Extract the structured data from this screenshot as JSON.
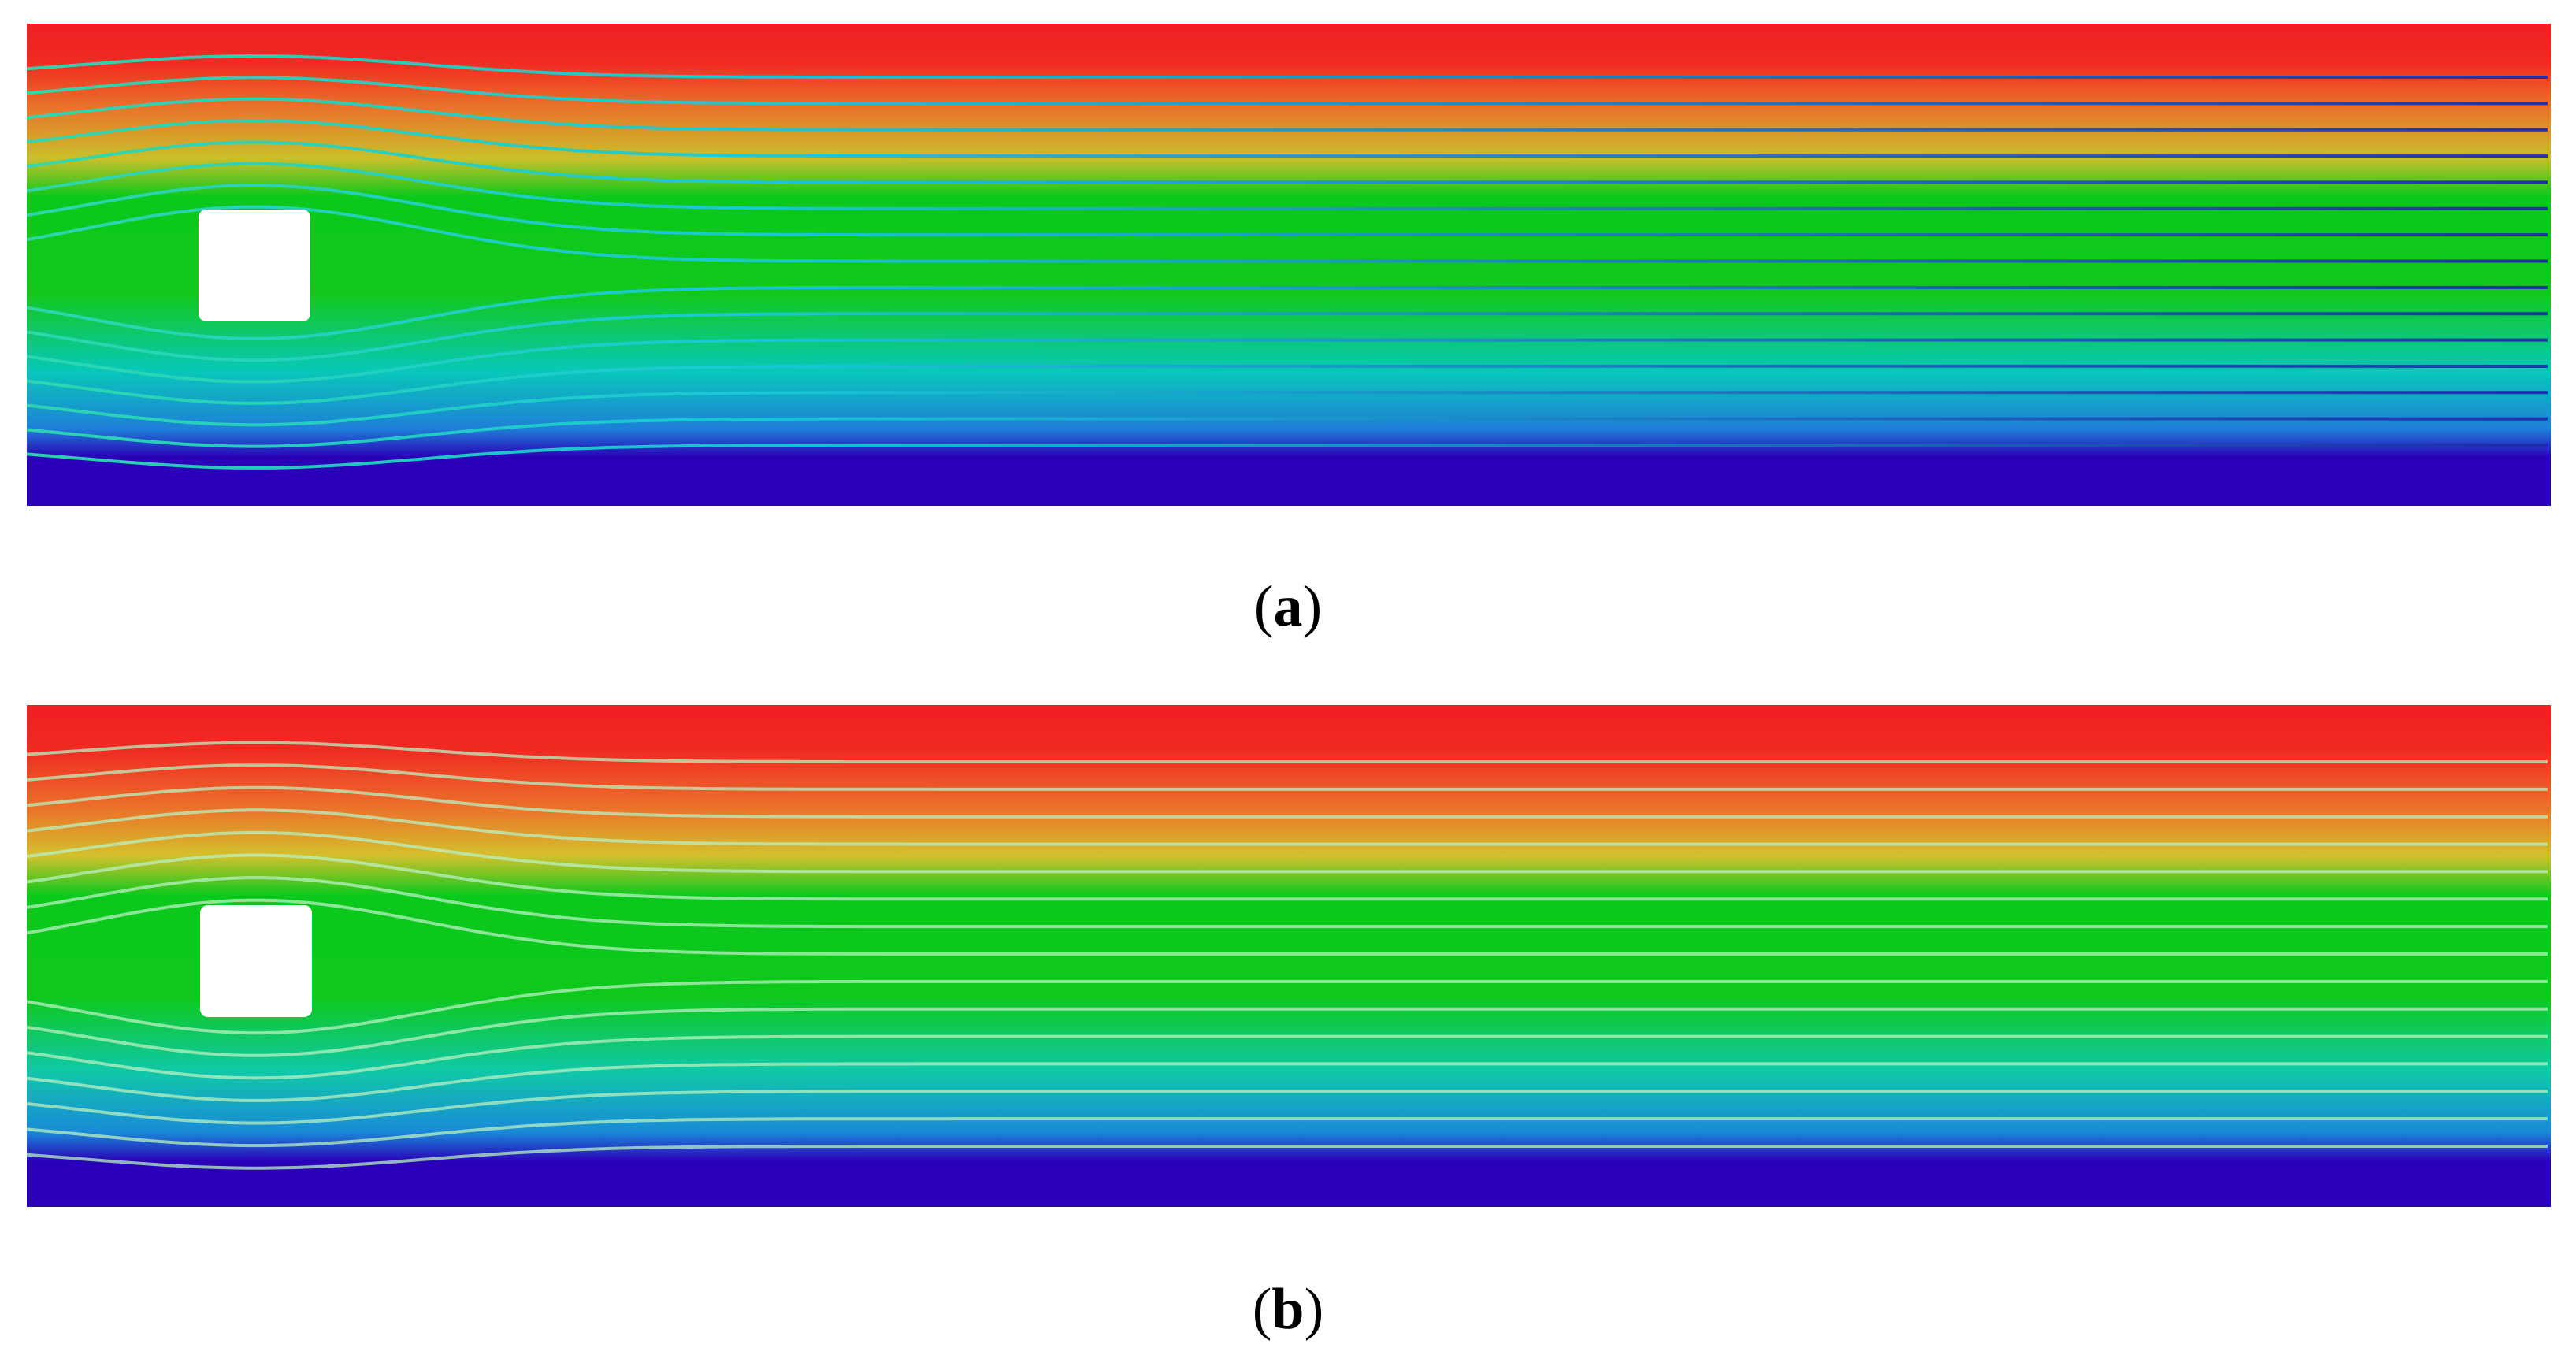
{
  "panels": [
    {
      "id": "a",
      "label": "a",
      "paren_open": "(",
      "paren_close": ")",
      "colors": [
        "#f01e23",
        "#e8782a",
        "#c8c02a",
        "#0bc81c",
        "#12c81c",
        "#08c8b8",
        "#1e80d8",
        "#2a00b8"
      ],
      "streamline_style": "cyan-to-navy"
    },
    {
      "id": "b",
      "label": "b",
      "paren_open": "(",
      "paren_close": ")",
      "colors": [
        "#f01e23",
        "#ec6e2a",
        "#d4c02c",
        "#0bc81c",
        "#0fc81c",
        "#10c8a8",
        "#1a8ad8",
        "#2a00b8"
      ],
      "streamline_style": "light"
    }
  ]
}
